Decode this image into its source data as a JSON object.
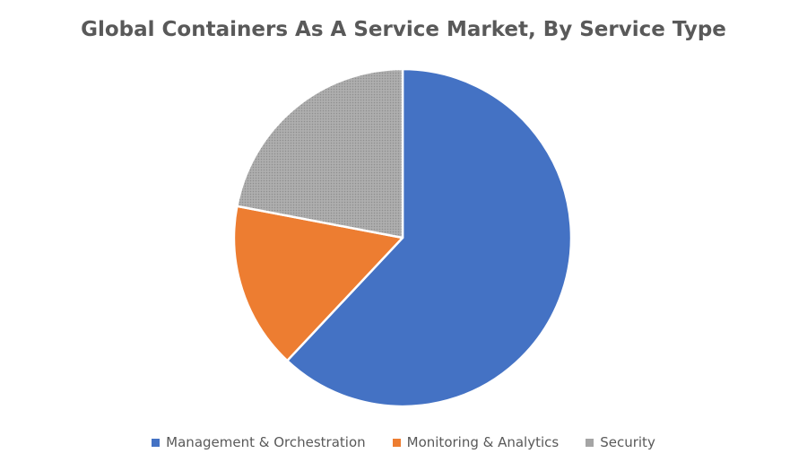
{
  "chart_data": {
    "type": "pie",
    "title": "Global Containers As A Service Market, By Service Type",
    "slices": [
      {
        "name": "Management & Orchestration",
        "value": 62,
        "color": "#4472C4"
      },
      {
        "name": "Monitoring & Analytics",
        "value": 16,
        "color": "#ED7D31"
      },
      {
        "name": "Security",
        "value": 22,
        "color": "#A5A5A5",
        "pattern": "dotted"
      }
    ],
    "start_angle_deg": 0,
    "direction": "clockwise",
    "legend_position": "bottom"
  }
}
